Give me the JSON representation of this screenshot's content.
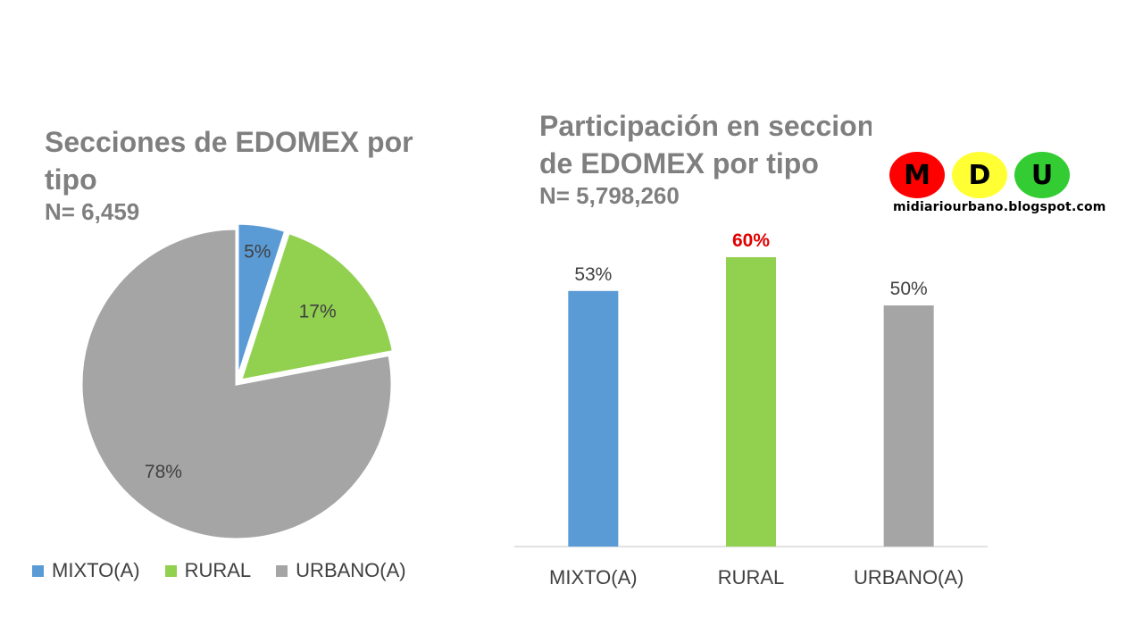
{
  "pie_chart": {
    "title_line1": "Secciones de EDOMEX por",
    "title_line2": "tipo",
    "subtitle": "N= 6,459"
  },
  "bar_chart": {
    "title_line1": "Participación en secciones",
    "title_line2": "de EDOMEX por tipo",
    "subtitle": "N= 5,798,260"
  },
  "logo": {
    "letters": [
      "M",
      "D",
      "U"
    ],
    "colors": [
      "#ff0000",
      "#ffff33",
      "#33cc33"
    ],
    "url": "midiariourbano.blogspot.com"
  },
  "legend": [
    {
      "label": "MIXTO(A)",
      "color": "#5b9bd5"
    },
    {
      "label": "RURAL",
      "color": "#92d050"
    },
    {
      "label": "URBANO(A)",
      "color": "#a5a5a5"
    }
  ],
  "chart_data": [
    {
      "type": "pie",
      "title": "Secciones de EDOMEX por tipo",
      "subtitle": "N= 6,459",
      "categories": [
        "MIXTO(A)",
        "RURAL",
        "URBANO(A)"
      ],
      "values": [
        5,
        17,
        78
      ],
      "data_labels": [
        "5%",
        "17%",
        "78%"
      ],
      "colors": [
        "#5b9bd5",
        "#92d050",
        "#a5a5a5"
      ],
      "exploded": [
        "MIXTO(A)",
        "RURAL"
      ],
      "legend_position": "bottom"
    },
    {
      "type": "bar",
      "title": "Participación en secciones de EDOMEX por tipo",
      "subtitle": "N= 5,798,260",
      "categories": [
        "MIXTO(A)",
        "RURAL",
        "URBANO(A)"
      ],
      "values": [
        53,
        60,
        50
      ],
      "data_labels": [
        "53%",
        "60%",
        "50%"
      ],
      "colors": [
        "#5b9bd5",
        "#92d050",
        "#a5a5a5"
      ],
      "label_colors": [
        "#404040",
        "#e00000",
        "#404040"
      ],
      "highlighted_label": "60%",
      "ylim": [
        0,
        60
      ],
      "grid": false
    }
  ]
}
